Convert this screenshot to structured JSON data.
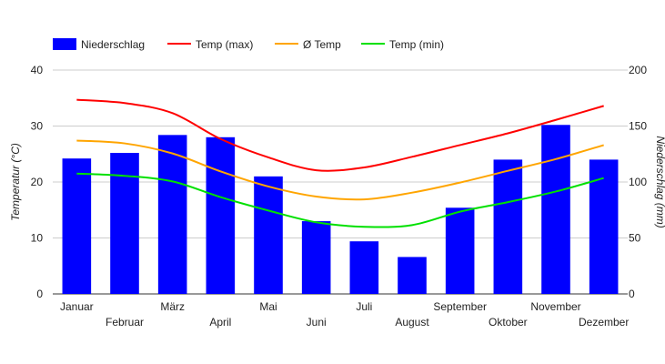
{
  "chart_data": {
    "type": "bar-line-combo",
    "categories": [
      "Januar",
      "Februar",
      "März",
      "April",
      "Mai",
      "Juni",
      "Juli",
      "August",
      "September",
      "Oktober",
      "November",
      "Dezember"
    ],
    "bars": {
      "name": "Niederschlag",
      "axis": "right",
      "color": "#0000ff",
      "values": [
        121,
        126,
        142,
        140,
        105,
        65,
        47,
        33,
        77,
        120,
        151,
        120
      ]
    },
    "series": [
      {
        "name": "Temp (max)",
        "color": "#ff0000",
        "values": [
          34.7,
          34.1,
          32.3,
          27.7,
          24.4,
          22.1,
          22.6,
          24.5,
          26.6,
          28.7,
          31.1,
          33.6
        ]
      },
      {
        "name": "Ø Temp",
        "color": "#ffa500",
        "values": [
          27.4,
          26.9,
          25.1,
          21.9,
          19.2,
          17.4,
          16.9,
          18.1,
          19.9,
          22.0,
          24.1,
          26.6
        ]
      },
      {
        "name": "Temp (min)",
        "color": "#00e000",
        "values": [
          21.5,
          21.1,
          20.1,
          17.3,
          14.9,
          12.8,
          12.0,
          12.3,
          14.7,
          16.4,
          18.3,
          20.7
        ]
      }
    ],
    "y_left": {
      "label": "Temperatur (°C)",
      "min": 0,
      "max": 40,
      "ticks": [
        0,
        10,
        20,
        30,
        40
      ]
    },
    "y_right": {
      "label": "Niederschlag (mm)",
      "min": 0,
      "max": 200,
      "ticks": [
        0,
        50,
        100,
        150,
        200
      ]
    },
    "grid": true,
    "legend_position": "top-left"
  }
}
